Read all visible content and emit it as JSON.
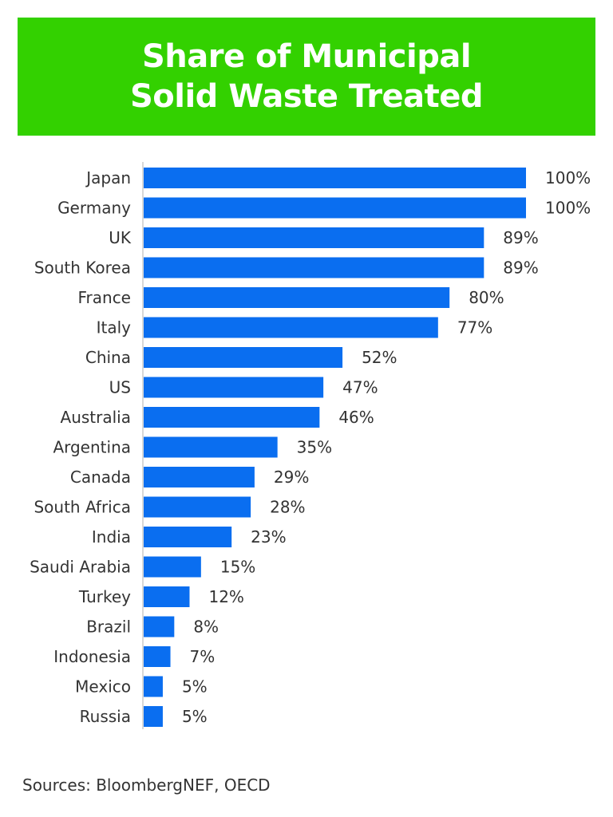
{
  "chart_data": {
    "type": "bar",
    "orientation": "horizontal",
    "title": [
      "Share of Municipal",
      "Solid Waste Treated"
    ],
    "categories": [
      "Japan",
      "Germany",
      "UK",
      "South Korea",
      "France",
      "Italy",
      "China",
      "US",
      "Australia",
      "Argentina",
      "Canada",
      "South Africa",
      "India",
      "Saudi Arabia",
      "Turkey",
      "Brazil",
      "Indonesia",
      "Mexico",
      "Russia"
    ],
    "values": [
      100,
      100,
      89,
      89,
      80,
      77,
      52,
      47,
      46,
      35,
      29,
      28,
      23,
      15,
      12,
      8,
      7,
      5,
      5
    ],
    "value_labels": [
      "100%",
      "100%",
      "89%",
      "89%",
      "80%",
      "77%",
      "52%",
      "47%",
      "46%",
      "35%",
      "29%",
      "28%",
      "23%",
      "15%",
      "12%",
      "8%",
      "7%",
      "5%",
      "5%"
    ],
    "xlim": [
      0,
      100
    ],
    "grid": false,
    "bar_color": "#0a6ef0",
    "title_background": "#33d100"
  },
  "source": "Sources: BloombergNEF, OECD"
}
